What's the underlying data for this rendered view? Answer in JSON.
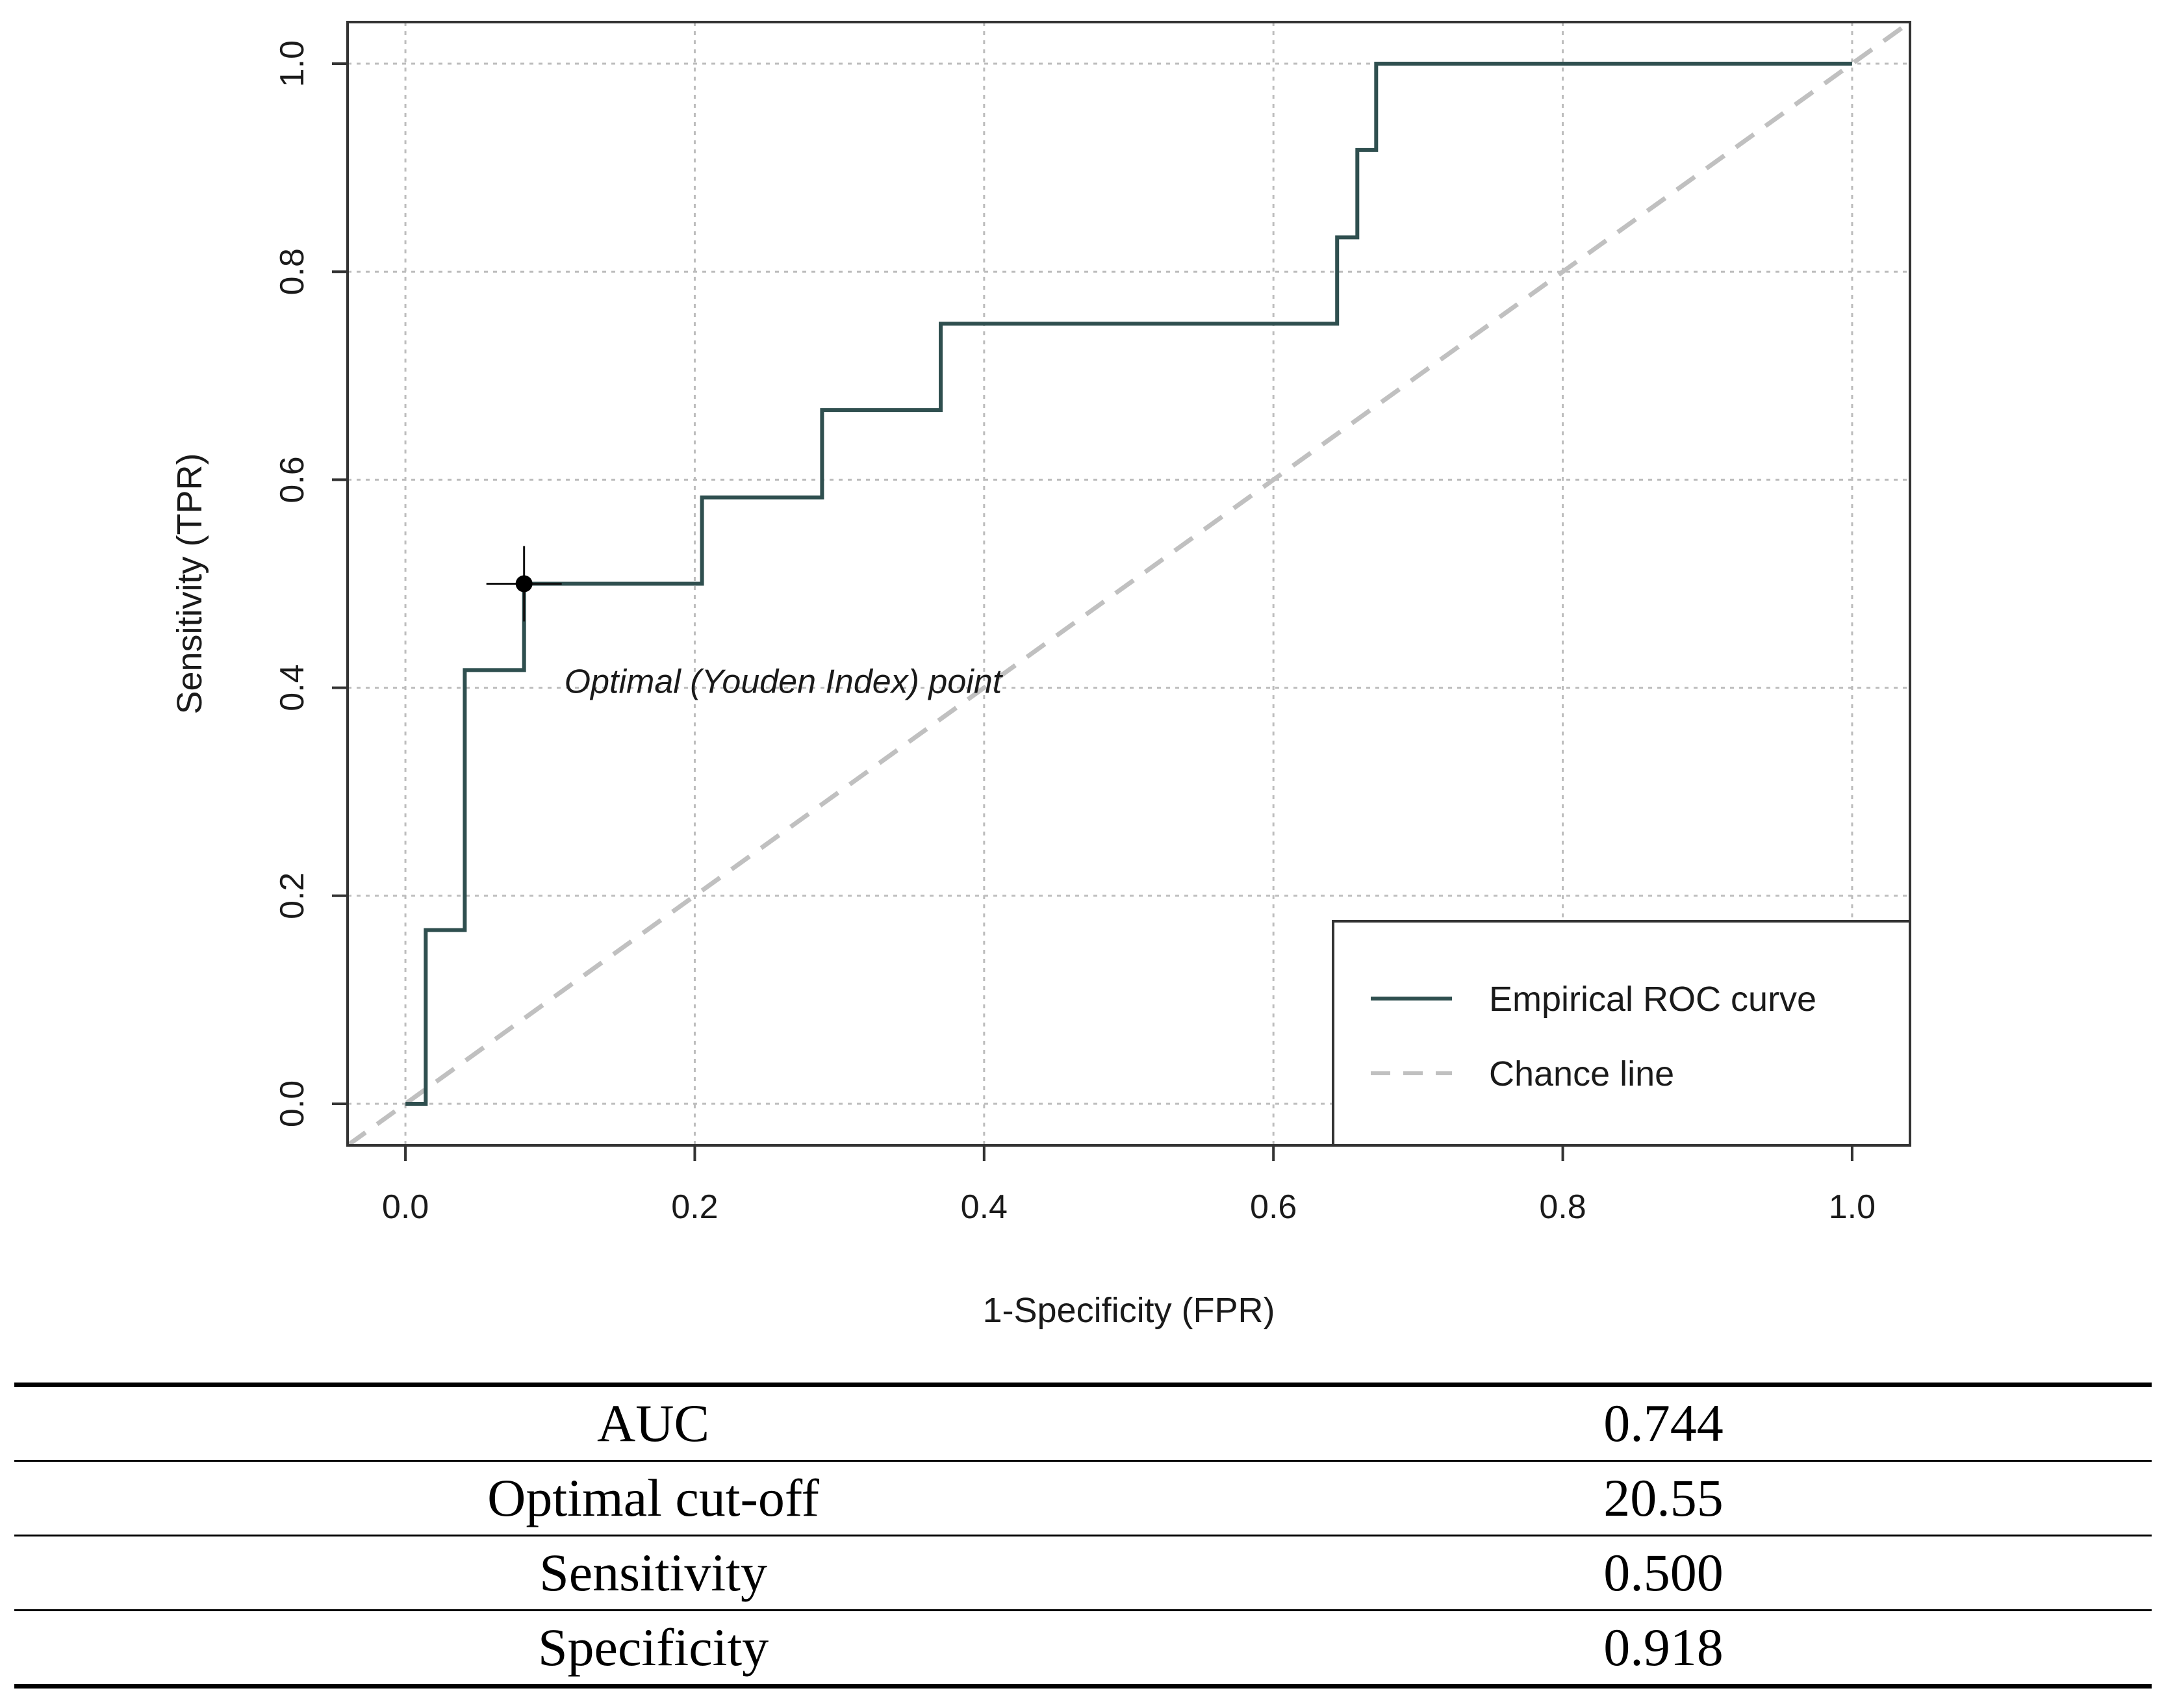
{
  "chart_data": {
    "type": "line",
    "xlabel": "1-Specificity (FPR)",
    "ylabel": "Sensitivity (TPR)",
    "xlim": [
      -0.04,
      1.04
    ],
    "ylim": [
      -0.04,
      1.04
    ],
    "x_ticks": [
      "0.0",
      "0.2",
      "0.4",
      "0.6",
      "0.8",
      "1.0"
    ],
    "y_ticks": [
      "0.0",
      "0.2",
      "0.4",
      "0.6",
      "0.8",
      "1.0"
    ],
    "grid": true,
    "legend_position": "bottom-right",
    "series": [
      {
        "name": "Empirical ROC curve",
        "color": "#2f4f4f",
        "style": "step",
        "points": [
          [
            0.0,
            0.0
          ],
          [
            0.014,
            0.0
          ],
          [
            0.014,
            0.167
          ],
          [
            0.041,
            0.167
          ],
          [
            0.041,
            0.417
          ],
          [
            0.082,
            0.417
          ],
          [
            0.082,
            0.5
          ],
          [
            0.205,
            0.5
          ],
          [
            0.205,
            0.583
          ],
          [
            0.288,
            0.583
          ],
          [
            0.288,
            0.667
          ],
          [
            0.37,
            0.667
          ],
          [
            0.37,
            0.75
          ],
          [
            0.644,
            0.75
          ],
          [
            0.644,
            0.833
          ],
          [
            0.658,
            0.833
          ],
          [
            0.658,
            0.917
          ],
          [
            0.671,
            0.917
          ],
          [
            0.671,
            1.0
          ],
          [
            1.0,
            1.0
          ]
        ]
      },
      {
        "name": "Chance line",
        "color": "#c0c0c0",
        "style": "dashed",
        "points": [
          [
            -0.04,
            -0.04
          ],
          [
            1.04,
            1.04
          ]
        ]
      }
    ],
    "optimal_point": {
      "x": 0.082,
      "y": 0.5,
      "label": "Optimal (Youden Index) point"
    }
  },
  "stats_table": [
    {
      "label": "AUC",
      "value": "0.744"
    },
    {
      "label": "Optimal cut-off",
      "value": "20.55"
    },
    {
      "label": "Sensitivity",
      "value": "0.500"
    },
    {
      "label": "Specificity",
      "value": "0.918"
    }
  ]
}
